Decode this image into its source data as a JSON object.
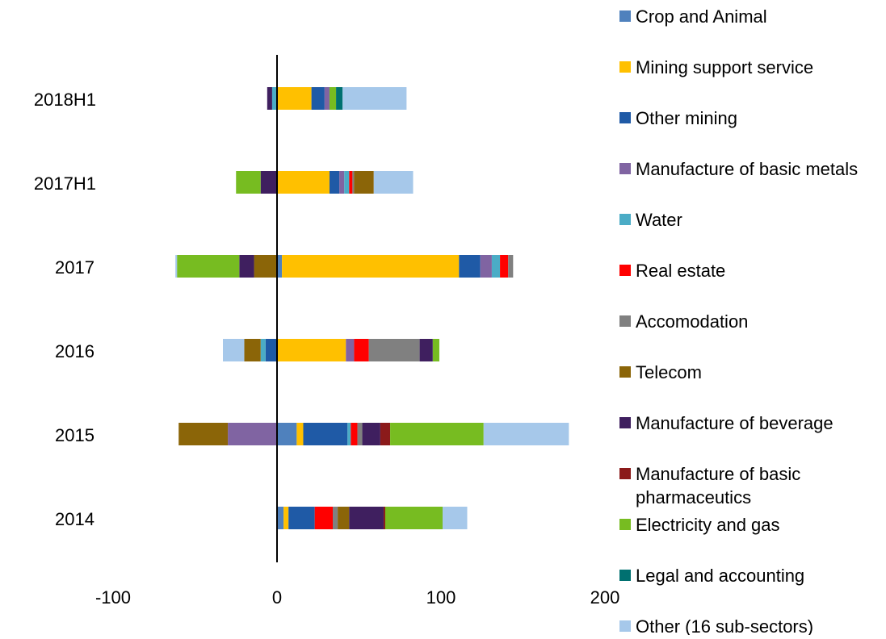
{
  "chart_data": {
    "type": "bar",
    "orientation": "horizontal",
    "stacked": true,
    "categories": [
      "2018H1",
      "2017H1",
      "2017",
      "2016",
      "2015",
      "2014"
    ],
    "xlim": [
      -100,
      200
    ],
    "xticks": [
      -100,
      0,
      100,
      200
    ],
    "grid": false,
    "legend_position": "right",
    "series": [
      {
        "name": "Crop and Animal",
        "color": "#4F81BD",
        "values": [
          0,
          0,
          3,
          0,
          12,
          4
        ]
      },
      {
        "name": "Mining support service",
        "color": "#FFC000",
        "values": [
          21,
          32,
          108,
          42,
          4,
          3
        ]
      },
      {
        "name": "Other mining",
        "color": "#1F5AA6",
        "values": [
          8,
          6,
          13,
          -7,
          27,
          16
        ]
      },
      {
        "name": "Manufacture of basic metals",
        "color": "#8064A2",
        "values": [
          3,
          3,
          7,
          5,
          -30,
          0
        ]
      },
      {
        "name": "Water",
        "color": "#4BACC6",
        "values": [
          -3,
          3,
          5,
          -3,
          2,
          0
        ]
      },
      {
        "name": "Real estate",
        "color": "#FF0000",
        "values": [
          0,
          2,
          5,
          9,
          4,
          11
        ]
      },
      {
        "name": "Accomodation",
        "color": "#808080",
        "values": [
          0,
          1,
          3,
          31,
          3,
          3
        ]
      },
      {
        "name": "Telecom",
        "color": "#8B6508",
        "values": [
          0,
          12,
          -14,
          -10,
          -30,
          7
        ]
      },
      {
        "name": "Manufacture of beverage",
        "color": "#3F1F5F",
        "values": [
          -3,
          -10,
          -9,
          8,
          11,
          21
        ]
      },
      {
        "name": "Manufacture of basic pharmaceutics",
        "color": "#8B1A1A",
        "values": [
          0,
          0,
          0,
          0,
          6,
          1
        ]
      },
      {
        "name": "Electricity and gas",
        "color": "#77BC21",
        "values": [
          4,
          -15,
          -38,
          4,
          57,
          35
        ]
      },
      {
        "name": "Legal and accounting",
        "color": "#007070",
        "values": [
          4,
          0,
          0,
          0,
          0,
          0
        ]
      },
      {
        "name": "Other (16 sub-sectors)",
        "color": "#A6C8EA",
        "values": [
          39,
          24,
          -1,
          -13,
          52,
          15
        ]
      }
    ]
  }
}
